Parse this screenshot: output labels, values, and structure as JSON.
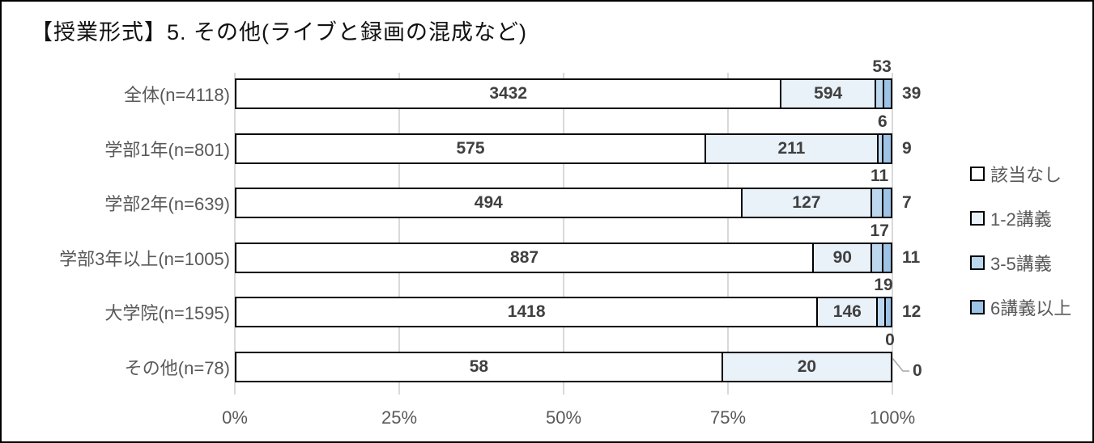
{
  "title": "【授業形式】5. その他(ライブと録画の混成など)",
  "chart_data": {
    "type": "bar",
    "subtype": "100%-stacked-horizontal",
    "title": "【授業形式】5. その他(ライブと録画の混成など)",
    "categories": [
      "全体(n=4118)",
      "学部1年(n=801)",
      "学部2年(n=639)",
      "学部3年以上(n=1005)",
      "大学院(n=1595)",
      "その他(n=78)"
    ],
    "totals": [
      4118,
      801,
      639,
      1005,
      1595,
      78
    ],
    "series": [
      {
        "name": "該当なし",
        "color": "#ffffff",
        "label_placement": "inside",
        "values": [
          3432,
          575,
          494,
          887,
          1418,
          58
        ]
      },
      {
        "name": "1-2講義",
        "color": "#e9f1f9",
        "label_placement": "inside",
        "values": [
          594,
          211,
          127,
          90,
          146,
          20
        ]
      },
      {
        "name": "3-5講義",
        "color": "#bdd7ee",
        "label_placement": "above",
        "values": [
          53,
          6,
          11,
          17,
          19,
          0
        ]
      },
      {
        "name": "6講義以上",
        "color": "#9dc3e6",
        "label_placement": "right",
        "values": [
          39,
          9,
          7,
          11,
          12,
          0
        ]
      }
    ],
    "x_axis": {
      "ticks": [
        "0%",
        "25%",
        "50%",
        "75%",
        "100%"
      ],
      "range": [
        0,
        100
      ],
      "grid": "vertical"
    },
    "legend_position": "right",
    "colors": {
      "bar_border": "#000000",
      "gridline": "#d9d9d9",
      "data_label": "#404040",
      "axis_text": "#595959",
      "leader_line": "#a6a6a6"
    }
  }
}
